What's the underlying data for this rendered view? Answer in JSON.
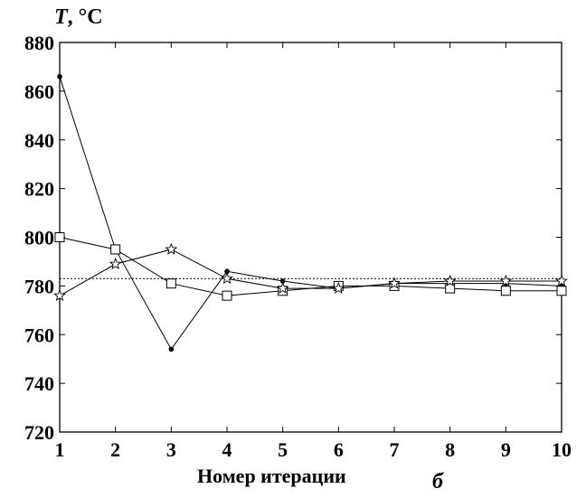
{
  "chart_data": {
    "type": "line",
    "title": "",
    "ylabel_var": "T",
    "ylabel_unit": ", °C",
    "xlabel": "Номер итерации",
    "panel_label": "б",
    "xlim": [
      1,
      10
    ],
    "ylim": [
      720,
      880
    ],
    "x_ticks": [
      1,
      2,
      3,
      4,
      5,
      6,
      7,
      8,
      9,
      10
    ],
    "y_ticks": [
      720,
      740,
      760,
      780,
      800,
      820,
      840,
      860,
      880
    ],
    "grid": false,
    "x": [
      1,
      2,
      3,
      4,
      5,
      6,
      7,
      8,
      9,
      10
    ],
    "series": [
      {
        "marker": "dot",
        "values": [
          866,
          795,
          754,
          786,
          782,
          779,
          781,
          781,
          781,
          780
        ]
      },
      {
        "marker": "square",
        "values": [
          800,
          795,
          781,
          776,
          778,
          780,
          780,
          779,
          778,
          778
        ]
      },
      {
        "marker": "star",
        "values": [
          776,
          789,
          795,
          783,
          779,
          779,
          781,
          782,
          782,
          782
        ]
      }
    ],
    "reference_line": {
      "y": 783,
      "style": "dotted"
    }
  },
  "colors": {
    "line": "#000000",
    "background": "#ffffff"
  }
}
